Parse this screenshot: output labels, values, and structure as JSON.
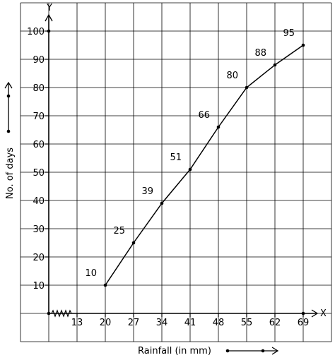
{
  "chart_data": {
    "type": "line",
    "xlabel": "Rainfall (in mm)",
    "ylabel": "No. of days",
    "x_axis_letter": "X",
    "y_axis_letter": "Y",
    "x": [
      20,
      27,
      34,
      41,
      48,
      55,
      62,
      69
    ],
    "y": [
      10,
      25,
      39,
      51,
      66,
      80,
      88,
      95
    ],
    "data_labels": [
      "10",
      "25",
      "39",
      "51",
      "66",
      "80",
      "88",
      "95"
    ],
    "x_ticks": [
      "13",
      "20",
      "27",
      "34",
      "41",
      "48",
      "55",
      "62",
      "69"
    ],
    "x_tick_values": [
      13,
      20,
      27,
      34,
      41,
      48,
      55,
      62,
      69
    ],
    "y_ticks": [
      "10",
      "20",
      "30",
      "40",
      "50",
      "60",
      "70",
      "80",
      "90",
      "100"
    ],
    "y_tick_values": [
      10,
      20,
      30,
      40,
      50,
      60,
      70,
      80,
      90,
      100
    ],
    "ylim": [
      0,
      110
    ],
    "x_break": true,
    "grid": true,
    "line_color": "#000000",
    "grid_color": "#000000"
  }
}
